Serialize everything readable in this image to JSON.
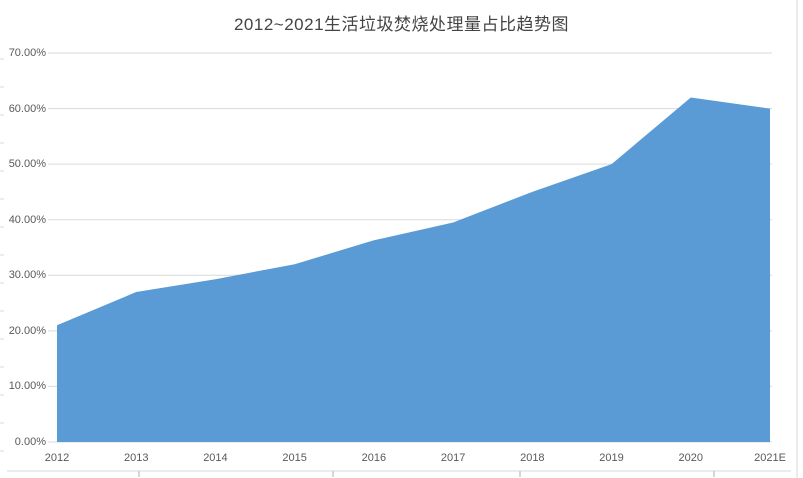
{
  "chart_data": {
    "type": "area",
    "title": "2012~2021生活垃圾焚烧处理量占比趋势图",
    "categories": [
      "2012",
      "2013",
      "2014",
      "2015",
      "2016",
      "2017",
      "2018",
      "2019",
      "2020",
      "2021E"
    ],
    "values": [
      21.0,
      27.0,
      29.3,
      32.0,
      36.3,
      39.5,
      45.0,
      50.0,
      62.0,
      60.0
    ],
    "unit": "%",
    "ylim": [
      0,
      70
    ],
    "ytick_step": 10,
    "ytick_labels": [
      "0.00%",
      "10.00%",
      "20.00%",
      "30.00%",
      "40.00%",
      "50.00%",
      "60.00%",
      "70.00%"
    ],
    "xlabel": "",
    "ylabel": "",
    "grid": true,
    "legend": "none"
  },
  "colors": {
    "area": "#5B9BD5",
    "gridline": "#D9D9D9",
    "frame_line": "#D9D9D9",
    "edge_tick": "#E4DEDE",
    "tick_label": "#595959",
    "title": "#444444",
    "background": "#FFFFFF"
  }
}
